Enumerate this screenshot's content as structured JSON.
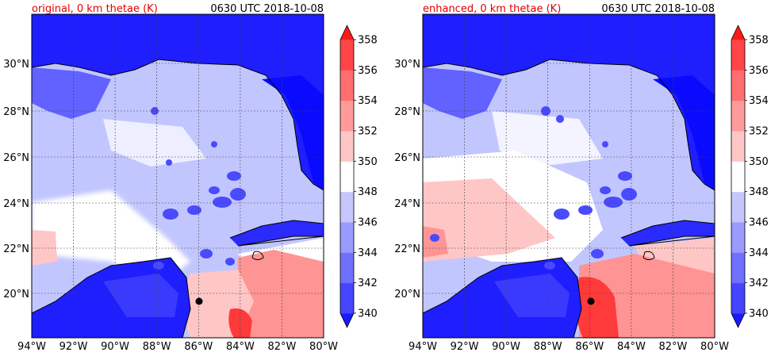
{
  "panels": [
    {
      "title": "original, 0 km thetae (K)",
      "time_label": "0630 UTC 2018-10-08"
    },
    {
      "title": "enhanced, 0 km thetae (K)",
      "time_label": "0630 UTC 2018-10-08"
    }
  ],
  "colors": {
    "title": "#e00000",
    "ocean": "#c2c6ff",
    "land": "#1e1eff",
    "warm": "#ff9494",
    "hot": "#ff3a3a",
    "neutral": "#ffffff"
  },
  "map": {
    "lon_range": [
      -94,
      -80
    ],
    "lat_range": [
      18,
      32
    ],
    "lon_ticks": [
      "94°W",
      "92°W",
      "90°W",
      "88°W",
      "86°W",
      "84°W",
      "82°W",
      "80°W"
    ],
    "lat_ticks": [
      "20°N",
      "22°N",
      "24°N",
      "26°N",
      "28°N",
      "30°N"
    ],
    "grid": true,
    "storm_center": {
      "lon": -86.0,
      "lat": 19.6
    }
  },
  "colorbar": {
    "levels": [
      340,
      342,
      344,
      346,
      348,
      350,
      352,
      354,
      356,
      358
    ],
    "labels": [
      "340",
      "342",
      "344",
      "346",
      "348",
      "350",
      "352",
      "354",
      "356",
      "358"
    ],
    "colors": [
      "#1a1aff",
      "#4545ff",
      "#7070ff",
      "#9a9aff",
      "#c6c6ff",
      "#ffffff",
      "#ffc6c6",
      "#ff9a9a",
      "#ff6f6f",
      "#ff4545",
      "#ff1a1a"
    ],
    "extend": "both"
  }
}
